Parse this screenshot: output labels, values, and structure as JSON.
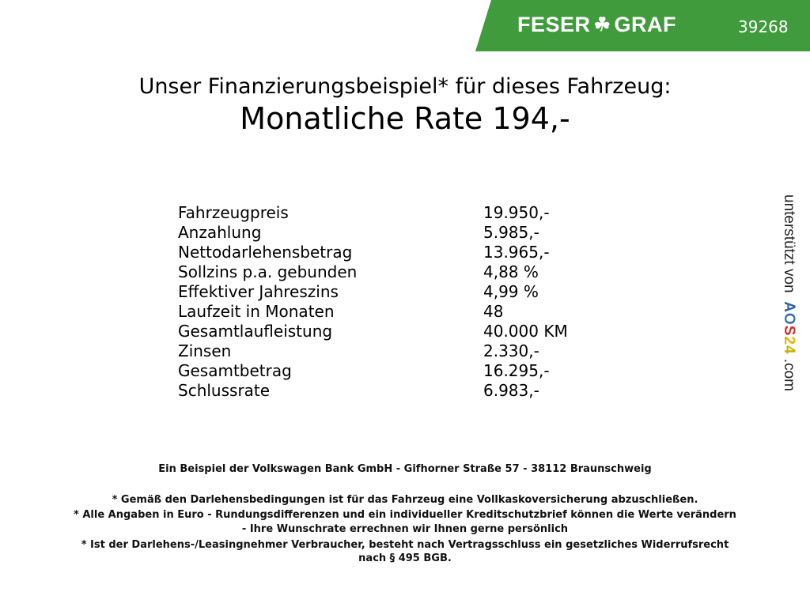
{
  "header": {
    "brand_left": "FESER",
    "brand_right": "GRAF",
    "brand_icon": "clover-icon",
    "dealer_number": "39268",
    "color": "#3f9b3b"
  },
  "title": "Unser Finanzierungsbeispiel* für dieses Fahrzeug:",
  "rate": "Monatliche Rate 194,-",
  "rows": [
    {
      "label": "Fahrzeugpreis",
      "value": "19.950,-"
    },
    {
      "label": "Anzahlung",
      "value": "5.985,-"
    },
    {
      "label": "Nettodarlehensbetrag",
      "value": "13.965,-"
    },
    {
      "label": "Sollzins p.a. gebunden",
      "value": "4,88 %"
    },
    {
      "label": "Effektiver Jahreszins",
      "value": "4,99 %"
    },
    {
      "label": "Laufzeit in Monaten",
      "value": "48"
    },
    {
      "label": "Gesamtlaufleistung",
      "value": "40.000 KM"
    },
    {
      "label": "Zinsen",
      "value": "2.330,-"
    },
    {
      "label": "Gesamtbetrag",
      "value": "16.295,-"
    },
    {
      "label": "Schlussrate",
      "value": "6.983,-"
    }
  ],
  "side": {
    "prefix": "unterstützt von",
    "brand": [
      "A",
      "O",
      "S",
      "2",
      "4"
    ],
    "suffix": ".com",
    "brand_colors": [
      "#2f5fa8",
      "#3a6fb0",
      "#d22b2b",
      "#e6b400",
      "#c8b400"
    ]
  },
  "footer": {
    "bank": "Ein Beispiel der Volkswagen Bank GmbH - Gifhorner Straße 57 - 38112 Braunschweig",
    "notes": [
      "* Gemäß den Darlehensbedingungen ist für das Fahrzeug eine Vollkaskoversicherung abzuschließen.",
      "* Alle Angaben in Euro - Rundungsdifferenzen und ein individueller Kreditschutzbrief können die Werte verändern",
      "- Ihre Wunschrate errechnen wir Ihnen gerne persönlich",
      "* Ist der Darlehens-/Leasingnehmer Verbraucher, besteht nach Vertragsschluss ein gesetzliches Widerrufsrecht",
      "nach § 495 BGB."
    ]
  }
}
